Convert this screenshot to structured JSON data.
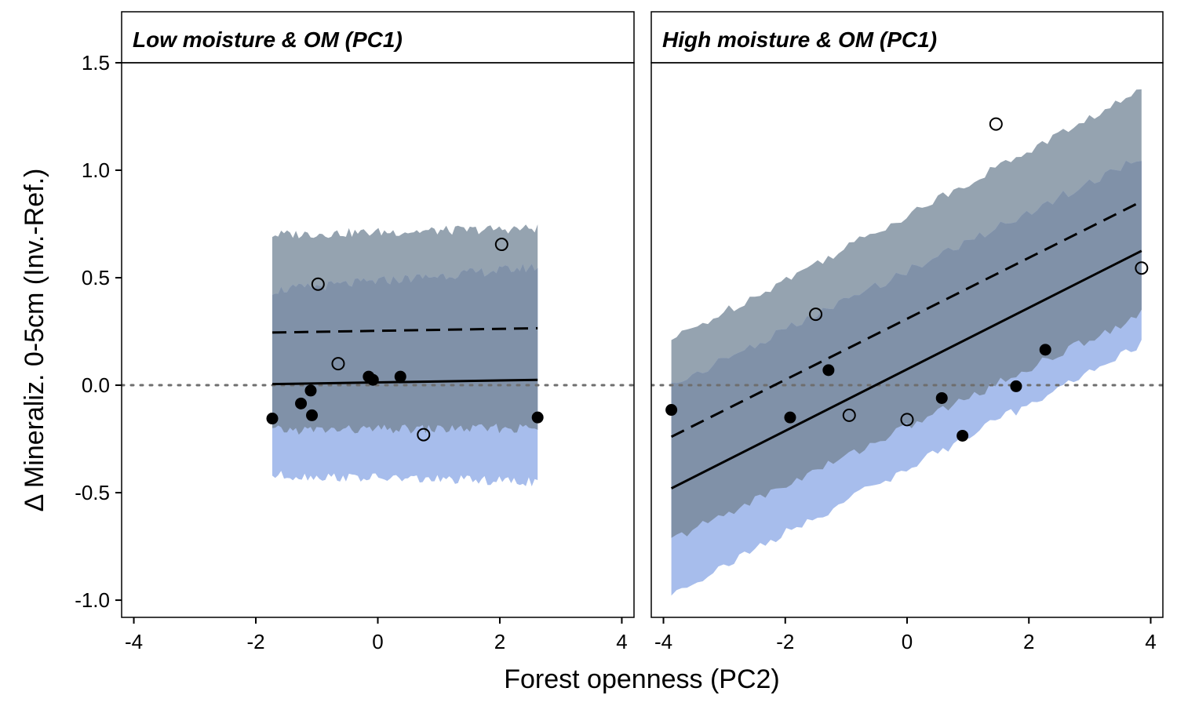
{
  "chart_data": {
    "type": "scatter",
    "xlabel": "Forest openness (PC2)",
    "ylabel": "Δ Mineraliz. 0-5cm (Inv.-Ref.)",
    "xlim": [
      -4.2,
      4.2
    ],
    "ylim": [
      -1.08,
      1.5
    ],
    "x_ticks": [
      -4,
      -2,
      0,
      2,
      4
    ],
    "y_ticks": [
      1.5,
      1.0,
      0.5,
      0.0,
      -0.5,
      -1.0
    ],
    "y_tick_labels": [
      "1.5",
      "1.0",
      "0.5",
      "0.0",
      "-0.5",
      "-1.0"
    ],
    "reference_line": {
      "y": 0,
      "style": "dotted",
      "color": "#6e6e6e"
    },
    "colors": {
      "band_open": "#95a3b0",
      "band_closed": "#a7bdec",
      "band_overlap": "#8091a8",
      "points": "#000000"
    },
    "grid": false,
    "facets": [
      {
        "title": "Low moisture & OM (PC1)",
        "x_range": [
          -1.73,
          2.62
        ],
        "fit_open": {
          "style": "dashed",
          "y_start": 0.245,
          "y_end": 0.265
        },
        "fit_closed": {
          "style": "solid",
          "y_start": 0.005,
          "y_end": 0.025
        },
        "band_open": {
          "lower_start": -0.21,
          "lower_end": -0.2,
          "upper_start": 0.7,
          "upper_end": 0.73
        },
        "band_closed": {
          "lower_start": -0.42,
          "lower_end": -0.45,
          "upper_start": 0.44,
          "upper_end": 0.55
        },
        "points_filled": [
          {
            "x": -1.73,
            "y": -0.155
          },
          {
            "x": -1.26,
            "y": -0.085
          },
          {
            "x": -1.1,
            "y": -0.025
          },
          {
            "x": -1.08,
            "y": -0.14
          },
          {
            "x": -0.15,
            "y": 0.04
          },
          {
            "x": -0.08,
            "y": 0.025
          },
          {
            "x": 0.37,
            "y": 0.04
          },
          {
            "x": 2.62,
            "y": -0.15
          }
        ],
        "points_open": [
          {
            "x": -0.98,
            "y": 0.47
          },
          {
            "x": -0.65,
            "y": 0.1
          },
          {
            "x": 0.75,
            "y": -0.23
          },
          {
            "x": 2.03,
            "y": 0.655
          }
        ]
      },
      {
        "title": "High moisture & OM (PC1)",
        "x_range": [
          -3.87,
          3.85
        ],
        "fit_open": {
          "style": "dashed",
          "y_start": -0.24,
          "y_end": 0.855
        },
        "fit_closed": {
          "style": "solid",
          "y_start": -0.48,
          "y_end": 0.625
        },
        "band_open": {
          "lower_start": -0.72,
          "lower_end": 0.33,
          "upper_start": 0.21,
          "upper_end": 1.37
        },
        "band_closed": {
          "lower_start": -0.97,
          "lower_end": 0.19,
          "upper_start": 0.0,
          "upper_end": 1.06
        },
        "points_filled": [
          {
            "x": -3.87,
            "y": -0.115
          },
          {
            "x": -1.92,
            "y": -0.15
          },
          {
            "x": -1.29,
            "y": 0.07
          },
          {
            "x": 0.57,
            "y": -0.06
          },
          {
            "x": 0.91,
            "y": -0.235
          },
          {
            "x": 1.79,
            "y": -0.005
          },
          {
            "x": 2.27,
            "y": 0.165
          }
        ],
        "points_open": [
          {
            "x": -1.5,
            "y": 0.33
          },
          {
            "x": -0.95,
            "y": -0.14
          },
          {
            "x": 0.0,
            "y": -0.16
          },
          {
            "x": 1.46,
            "y": 1.215
          },
          {
            "x": 3.85,
            "y": 0.545
          }
        ]
      }
    ]
  }
}
